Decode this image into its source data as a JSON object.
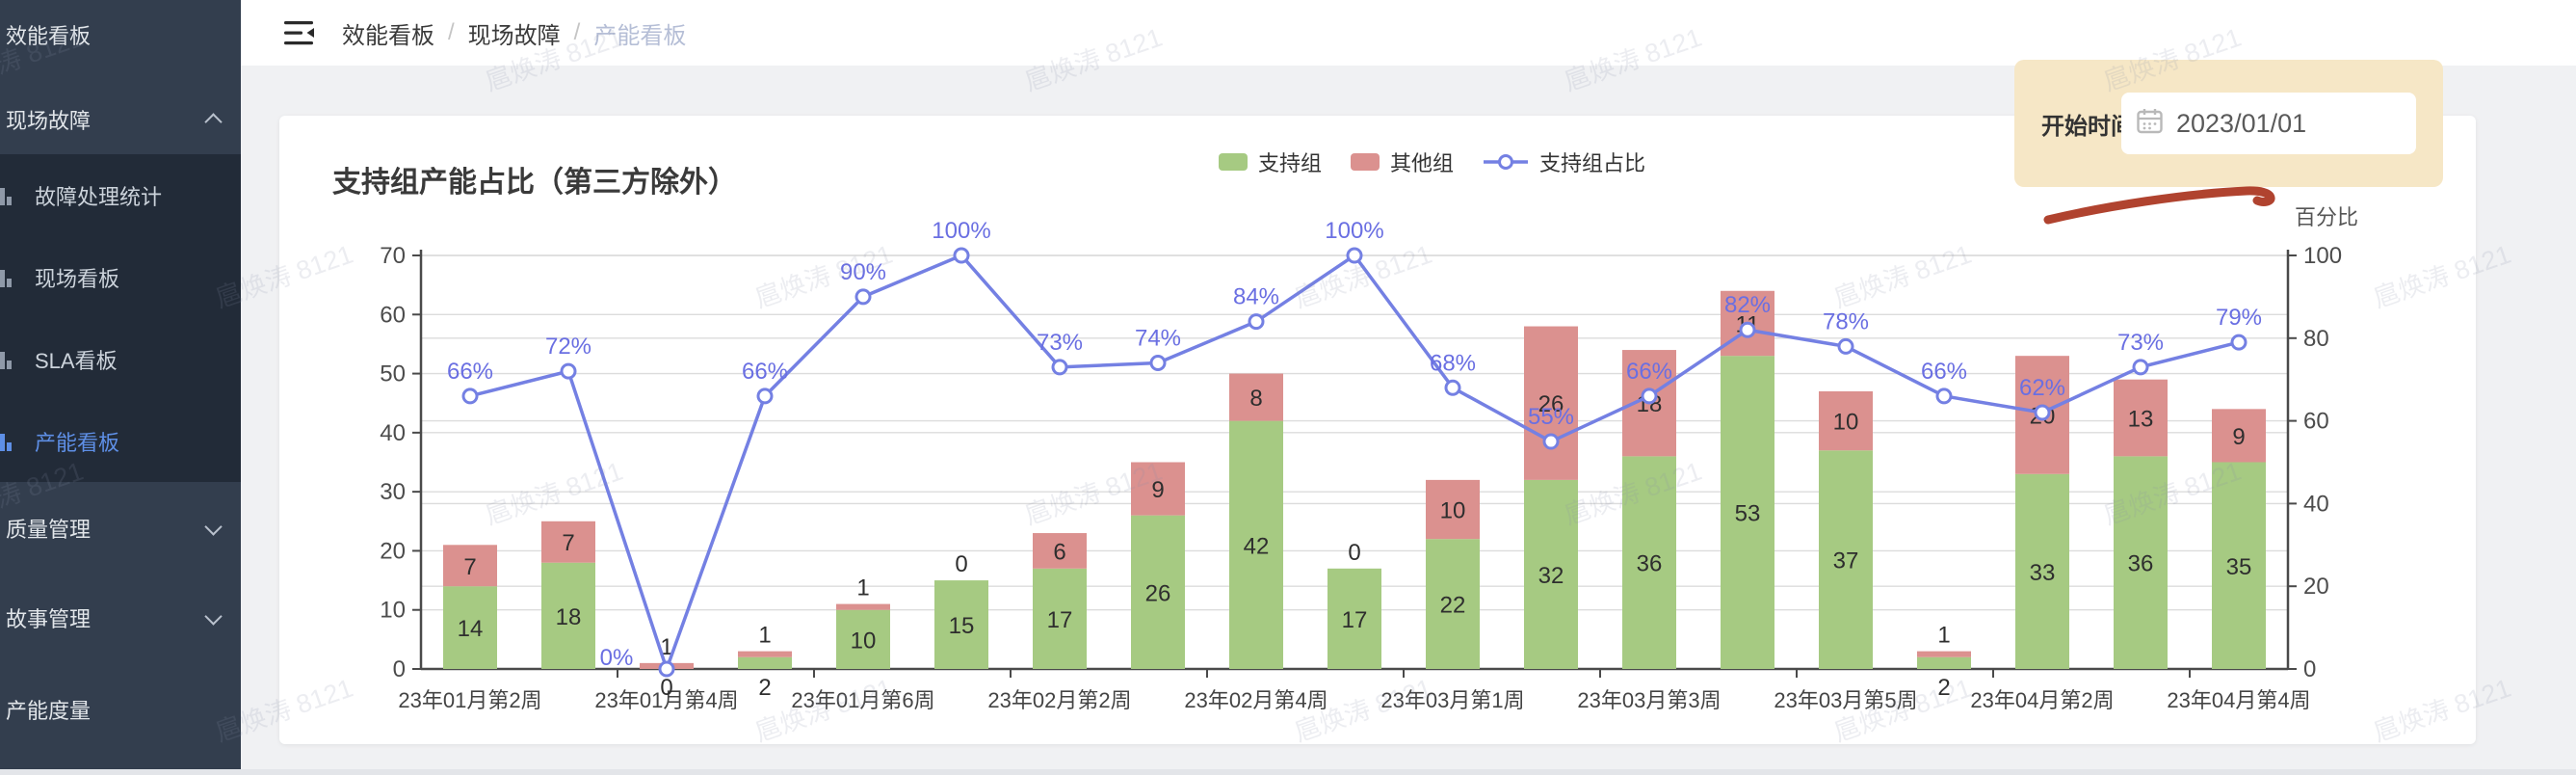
{
  "watermark": {
    "text": "扈焕涛 8121"
  },
  "sidebar": {
    "items": [
      {
        "label": "效能看板",
        "type": "top"
      },
      {
        "label": "现场故障",
        "type": "top",
        "chevron": "up",
        "expanded": true
      },
      {
        "label": "故障处理统计",
        "type": "sub",
        "selected": false
      },
      {
        "label": "现场看板",
        "type": "sub",
        "selected": false
      },
      {
        "label": "SLA看板",
        "type": "sub",
        "selected": false
      },
      {
        "label": "产能看板",
        "type": "sub",
        "selected": true
      },
      {
        "label": "质量管理",
        "type": "top",
        "chevron": "down"
      },
      {
        "label": "故事管理",
        "type": "top",
        "chevron": "down"
      },
      {
        "label": "产能度量",
        "type": "top"
      }
    ]
  },
  "header": {
    "separator": "/",
    "breadcrumb": [
      {
        "label": "效能看板"
      },
      {
        "label": "现场故障"
      },
      {
        "label": "产能看板"
      }
    ]
  },
  "filter": {
    "label": "开始时间：",
    "value": "2023/01/01"
  },
  "chart_data": {
    "type": "bar",
    "stacked": true,
    "title": "支持组产能占比（第三方除外）",
    "right_axis_title": "百分比",
    "legend_position": "top",
    "grid": true,
    "num_bars": 19,
    "label_every_n_bars": 2,
    "x_tick_labels": [
      "23年01月第2周",
      "23年01月第4周",
      "23年01月第6周",
      "23年02月第2周",
      "23年02月第4周",
      "23年03月第1周",
      "23年03月第3周",
      "23年03月第5周",
      "23年04月第2周",
      "23年04月第4周"
    ],
    "series": [
      {
        "name": "支持组",
        "type": "bar",
        "stack": true,
        "color": "#a6ca82",
        "values": [
          14,
          18,
          0,
          2,
          10,
          15,
          17,
          26,
          42,
          17,
          22,
          32,
          36,
          53,
          37,
          2,
          33,
          36,
          35
        ]
      },
      {
        "name": "其他组",
        "type": "bar",
        "stack": true,
        "color": "#db918f",
        "values": [
          7,
          7,
          1,
          1,
          1,
          0,
          6,
          9,
          8,
          0,
          10,
          26,
          18,
          11,
          10,
          1,
          20,
          13,
          9
        ]
      },
      {
        "name": "支持组占比",
        "type": "line",
        "axis": "right",
        "unit": "%",
        "color": "#7480e3",
        "values": [
          66,
          72,
          0,
          66,
          90,
          100,
          73,
          74,
          84,
          100,
          68,
          55,
          66,
          82,
          78,
          66,
          62,
          73,
          79
        ]
      }
    ],
    "left_axis": {
      "min": 0,
      "max": 70,
      "step": 10
    },
    "right_axis": {
      "min": 0,
      "max": 100,
      "step": 20,
      "unit": "%"
    }
  },
  "colors": {
    "sidebar_bg": "#333e4e",
    "submenu_bg": "#222b38",
    "selected_item": "#5e8fe6",
    "bar_green": "#a6ca82",
    "bar_pink": "#db918f",
    "line_blue": "#7480e3",
    "pct_label": "#6a6fe2",
    "panel_tan": "#f6e7c6",
    "red_marker": "#b0432f"
  }
}
